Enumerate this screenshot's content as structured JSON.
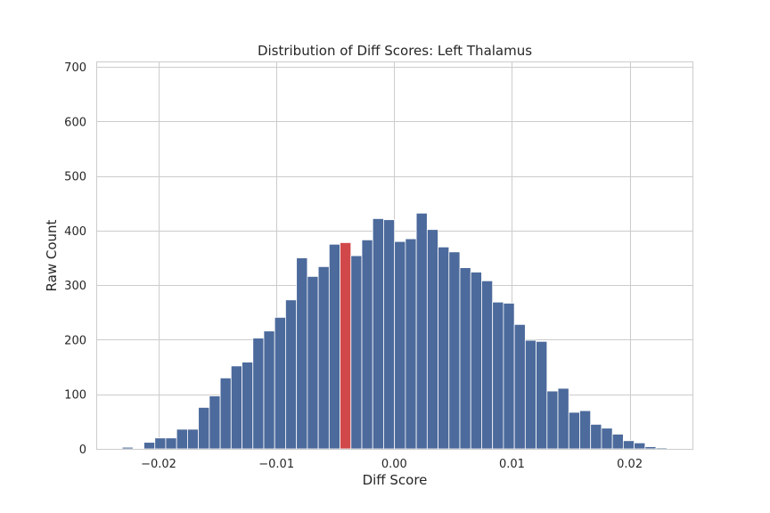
{
  "chart_data": {
    "type": "bar",
    "title": "Distribution of Diff Scores: Left Thalamus",
    "xlabel": "Diff Score",
    "ylabel": "Raw Count",
    "xlim": [
      -0.0253,
      0.0254
    ],
    "ylim": [
      0,
      710
    ],
    "xticks": [
      -0.02,
      -0.01,
      0.0,
      0.01,
      0.02
    ],
    "xtick_labels": [
      "−0.02",
      "−0.01",
      "0.00",
      "0.01",
      "0.02"
    ],
    "yticks": [
      0,
      100,
      200,
      300,
      400,
      500,
      600,
      700
    ],
    "ytick_labels": [
      "0",
      "100",
      "200",
      "300",
      "400",
      "500",
      "600",
      "700"
    ],
    "grid": true,
    "bin_start": -0.0231,
    "bin_width": 0.000925,
    "bar_color": "#4c6a9c",
    "highlight_color": "#d1484a",
    "highlight_index": 20,
    "values": [
      3,
      0,
      12,
      20,
      20,
      36,
      36,
      76,
      97,
      130,
      152,
      159,
      203,
      216,
      241,
      273,
      350,
      316,
      334,
      375,
      378,
      354,
      383,
      422,
      420,
      380,
      385,
      432,
      402,
      370,
      361,
      332,
      324,
      308,
      269,
      267,
      228,
      199,
      197,
      106,
      111,
      67,
      70,
      45,
      38,
      27,
      15,
      11,
      4,
      2
    ]
  }
}
